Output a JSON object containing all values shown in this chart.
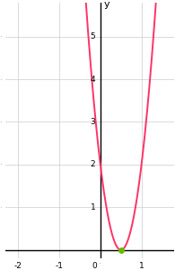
{
  "title": "",
  "xlabel": "",
  "ylabel": "y",
  "xlim": [
    -2.3,
    1.8
  ],
  "ylim": [
    -0.2,
    5.8
  ],
  "xticks": [
    -2,
    -1,
    0,
    1
  ],
  "yticks": [
    1,
    2,
    3,
    4,
    5
  ],
  "curve_color": "#FF3366",
  "curve_lw": 1.4,
  "coeff": 8,
  "root": 0.5,
  "root_color": "#66BB00",
  "root_marker_size": 5,
  "grid_color": "#cccccc",
  "axis_color": "#000000",
  "bg_color": "#ffffff",
  "tick_fontsize": 6.5,
  "ylabel_fontsize": 8
}
